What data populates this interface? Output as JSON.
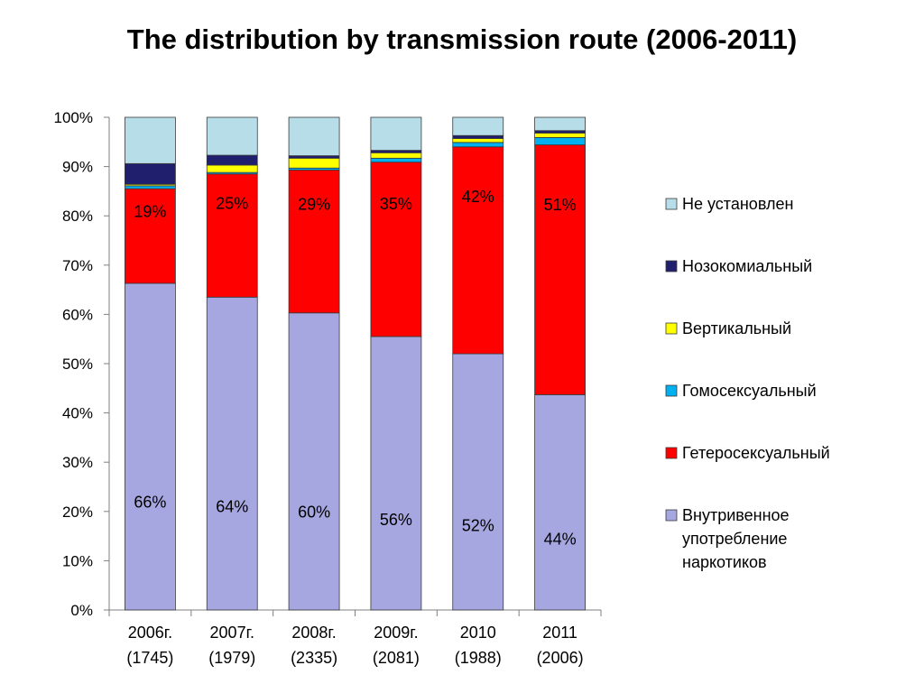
{
  "chart_data": {
    "type": "bar",
    "stacked": true,
    "percent": true,
    "title": "The distribution by transmission route (2006-2011)",
    "xlabel": "",
    "ylabel": "",
    "ylim": [
      0,
      100
    ],
    "yticks": [
      "0%",
      "10%",
      "20%",
      "30%",
      "40%",
      "50%",
      "60%",
      "70%",
      "80%",
      "90%",
      "100%"
    ],
    "grid": false,
    "legend_position": "right",
    "categories": [
      [
        "2006г.",
        "(1745)"
      ],
      [
        "2007г.",
        "(1979)"
      ],
      [
        "2008г.",
        "(2335)"
      ],
      [
        "2009г.",
        "(2081)"
      ],
      [
        "2010",
        "(1988)"
      ],
      [
        "2011",
        "(2006)"
      ]
    ],
    "series": [
      {
        "name": "Внутривенное употребление наркотиков",
        "legend_lines": [
          "Внутривенное",
          "употребление",
          "наркотиков"
        ],
        "color": "#A6A6E0",
        "values": [
          66.3,
          63.5,
          60.3,
          55.5,
          52.0,
          43.7
        ],
        "labels": [
          "66%",
          "64%",
          "60%",
          "56%",
          "52%",
          "44%"
        ]
      },
      {
        "name": "Гетеросексуальный",
        "legend_lines": [
          "Гетеросексуальный"
        ],
        "color": "#FF0000",
        "values": [
          19.2,
          25.0,
          29.0,
          35.4,
          42.0,
          50.7
        ],
        "labels": [
          "19%",
          "25%",
          "29%",
          "35%",
          "42%",
          "51%"
        ]
      },
      {
        "name": "Гомосексуальный",
        "legend_lines": [
          "Гомосексуальный"
        ],
        "color": "#00B0F0",
        "values": [
          0.6,
          0.3,
          0.4,
          0.8,
          0.9,
          1.5
        ],
        "labels": []
      },
      {
        "name": "Вертикальный",
        "legend_lines": [
          "Вертикальный"
        ],
        "color": "#FFFF00",
        "values": [
          0.3,
          1.5,
          2.0,
          1.1,
          0.8,
          0.9
        ],
        "labels": []
      },
      {
        "name": "Нозокомиальный",
        "legend_lines": [
          "Нозокомиальный"
        ],
        "color": "#1F1F6E",
        "values": [
          4.2,
          2.0,
          0.5,
          0.5,
          0.6,
          0.5
        ],
        "labels": []
      },
      {
        "name": "Не установлен",
        "legend_lines": [
          "Не установлен"
        ],
        "color": "#B7DDE8",
        "values": [
          9.4,
          7.7,
          7.8,
          6.7,
          3.7,
          2.7
        ],
        "labels": []
      }
    ]
  }
}
